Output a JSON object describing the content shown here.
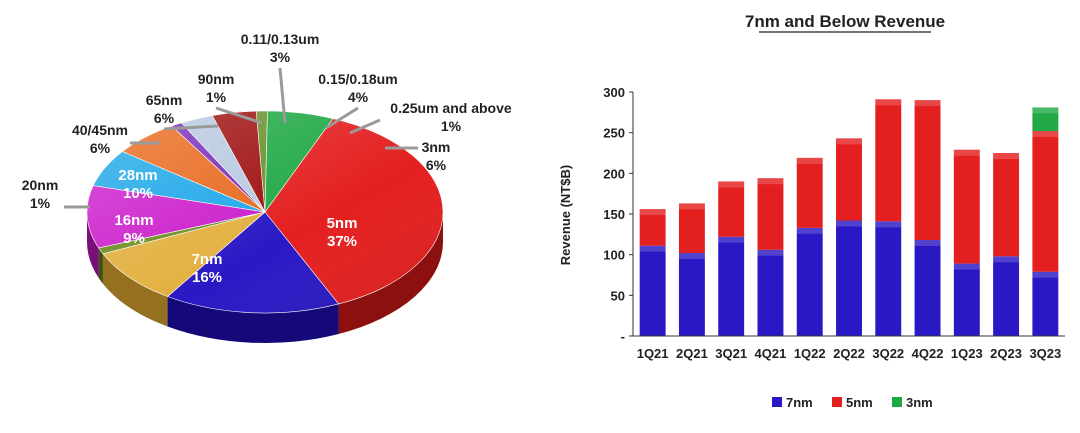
{
  "chart_data": [
    {
      "type": "pie",
      "slices": [
        {
          "label": "5nm",
          "pct": "37%",
          "value": 37,
          "color": "#e41f1f",
          "side": "#8c1010"
        },
        {
          "label": "7nm",
          "pct": "16%",
          "value": 16,
          "color": "#2a18c4",
          "side": "#15097a"
        },
        {
          "label": "16nm",
          "pct": "9%",
          "value": 9,
          "color": "#e3b040",
          "side": "#94701f"
        },
        {
          "label": "20nm",
          "pct": "1%",
          "value": 1,
          "color": "#6b8e23",
          "side": "#3d5212"
        },
        {
          "label": "28nm",
          "pct": "10%",
          "value": 10,
          "color": "#cc1fcc",
          "side": "#7a0f7a"
        },
        {
          "label": "40/45nm",
          "pct": "6%",
          "value": 6,
          "color": "#1ea7e8",
          "side": "#0f6390"
        },
        {
          "label": "65nm",
          "pct": "6%",
          "value": 6,
          "color": "#e8691e",
          "side": "#8f3c0d"
        },
        {
          "label": "90nm",
          "pct": "1%",
          "value": 1,
          "color": "#7a2db8",
          "side": "#45176b"
        },
        {
          "label": "0.11/0.13um",
          "pct": "3%",
          "value": 3,
          "color": "#b8c9e0",
          "side": "#74869e"
        },
        {
          "label": "0.15/0.18um",
          "pct": "4%",
          "value": 4,
          "color": "#9e1010",
          "side": "#5a0808"
        },
        {
          "label": "0.25um and above",
          "pct": "1%",
          "value": 1,
          "color": "#6c8f2a",
          "side": "#3e5516"
        },
        {
          "label": "3nm",
          "pct": "6%",
          "value": 6,
          "color": "#20a845",
          "side": "#116127"
        }
      ]
    },
    {
      "type": "bar",
      "stacked": true,
      "title": "7nm and Below Revenue",
      "ylabel": "Revenue (NT$B)",
      "ylim": [
        0,
        300
      ],
      "yticks": [
        "-",
        "50",
        "100",
        "150",
        "200",
        "250",
        "300"
      ],
      "categories": [
        "1Q21",
        "2Q21",
        "3Q21",
        "4Q21",
        "1Q22",
        "2Q22",
        "3Q22",
        "4Q22",
        "1Q23",
        "2Q23",
        "3Q23"
      ],
      "series": [
        {
          "name": "7nm",
          "color": "#2a18c4",
          "values": [
            111,
            102,
            122,
            106,
            133,
            142,
            141,
            118,
            89,
            98,
            79
          ]
        },
        {
          "name": "5nm",
          "color": "#e41f1f",
          "values": [
            45,
            61,
            68,
            88,
            86,
            101,
            150,
            172,
            140,
            127,
            173
          ]
        },
        {
          "name": "3nm",
          "color": "#20a845",
          "values": [
            0,
            0,
            0,
            0,
            0,
            0,
            0,
            0,
            0,
            0,
            29
          ]
        }
      ],
      "legend": "bottom"
    }
  ]
}
